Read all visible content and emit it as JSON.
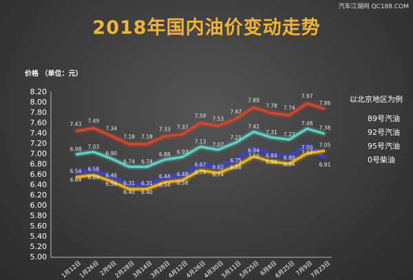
{
  "watermark": "汽车江湖网 QC188.COM",
  "chart_data": {
    "type": "line",
    "title": "2018年国内油价变动走势",
    "ylabel": "价格 （单位：元）",
    "xlabel": "",
    "ylim": [
      5.0,
      8.2
    ],
    "ytick_step": 0.2,
    "grid": false,
    "legend_title": "以北京地区为例",
    "categories": [
      "1月12日",
      "1月26日",
      "2月9日",
      "2月28日",
      "3月14日",
      "3月28日",
      "4月12日",
      "4月26日",
      "4月30日",
      "5月11日",
      "5月25日",
      "6月8日",
      "6月25日",
      "7月9日",
      "7月23日"
    ],
    "series": [
      {
        "name": "89号汽油",
        "color": "#3a3fd6",
        "values": [
          6.64,
          6.69,
          6.56,
          6.4,
          6.4,
          6.54,
          6.58,
          6.79,
          6.74,
          6.88,
          7.1,
          6.99,
          6.94,
          7.17,
          6.91
        ]
      },
      {
        "name": "92号汽油",
        "color": "#5fd3c4",
        "values": [
          6.98,
          7.03,
          6.9,
          6.74,
          6.74,
          6.88,
          6.93,
          7.13,
          7.07,
          7.21,
          7.42,
          7.31,
          7.27,
          7.48,
          7.38
        ]
      },
      {
        "name": "95号汽油",
        "color": "#d8442a",
        "values": [
          7.43,
          7.49,
          7.34,
          7.18,
          7.18,
          7.33,
          7.37,
          7.59,
          7.53,
          7.67,
          7.89,
          7.78,
          7.74,
          7.97,
          7.86
        ]
      },
      {
        "name": "0号柴油",
        "color": "#f2b31c",
        "values": [
          6.54,
          6.58,
          6.46,
          6.31,
          6.31,
          6.44,
          6.48,
          6.67,
          6.62,
          6.75,
          6.94,
          6.84,
          6.8,
          7.0,
          7.05
        ]
      }
    ]
  }
}
